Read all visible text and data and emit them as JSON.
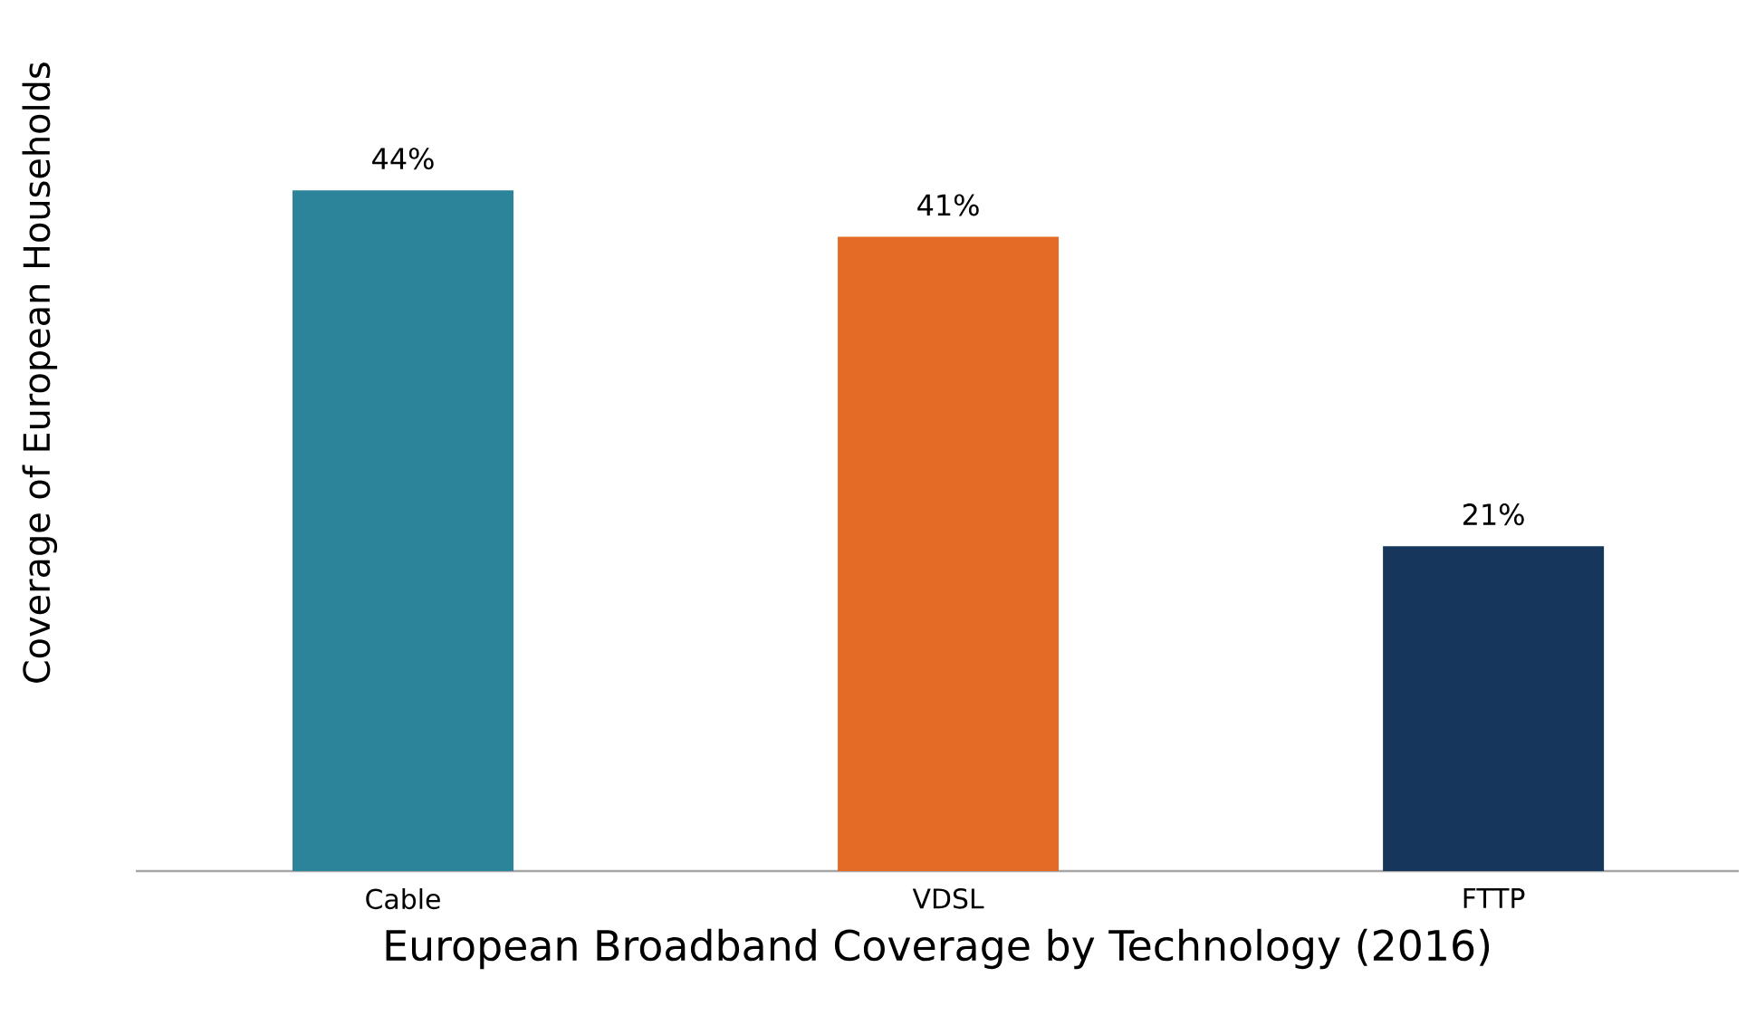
{
  "chart_data": {
    "type": "bar",
    "xlabel": "European Broadband Coverage by Technology (2016)",
    "ylabel": "Coverage of European Households",
    "categories": [
      "Cable",
      "VDSL",
      "FTTP"
    ],
    "values": [
      44,
      41,
      21
    ],
    "value_labels": [
      "44%",
      "41%",
      "21%"
    ],
    "colors": [
      "#2b8499",
      "#e46b25",
      "#16365c"
    ],
    "legend": false,
    "grid": false
  }
}
